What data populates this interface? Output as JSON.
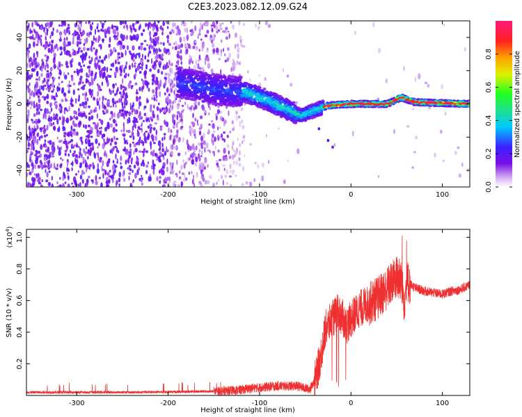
{
  "figure": {
    "title": "C2E3.2023.082.12.09.G24"
  },
  "chart_data": [
    {
      "type": "heatmap",
      "title": "C2E3.2023.082.12.09.G24",
      "xlabel": "Height of straight line (km)",
      "ylabel": "Frequency (Hz)",
      "xlim": [
        -355,
        130
      ],
      "ylim": [
        -50,
        50
      ],
      "x_ticks": [
        -300,
        -200,
        -100,
        0,
        100
      ],
      "y_ticks": [
        -40,
        -20,
        0,
        20,
        40
      ],
      "grid": false,
      "signal_trace": [
        {
          "x": -180,
          "y": 12
        },
        {
          "x": -140,
          "y": 8
        },
        {
          "x": -115,
          "y": 7
        },
        {
          "x": -95,
          "y": 3
        },
        {
          "x": -75,
          "y": -2
        },
        {
          "x": -55,
          "y": -7
        },
        {
          "x": -40,
          "y": -4
        },
        {
          "x": -25,
          "y": -1
        },
        {
          "x": 0,
          "y": 0
        },
        {
          "x": 40,
          "y": 0
        },
        {
          "x": 55,
          "y": 4
        },
        {
          "x": 70,
          "y": 1
        },
        {
          "x": 130,
          "y": 0
        }
      ],
      "colorbar": {
        "label": "Normalized spectral amplitude",
        "range": [
          0,
          1
        ],
        "ticks": [
          "0.0",
          "0.2",
          "0.4",
          "0.6",
          "0.8"
        ],
        "colors": [
          "#ffffff",
          "#d2a8f2",
          "#7a10e8",
          "#3a20ff",
          "#00c8ff",
          "#20e090",
          "#20ff20",
          "#e0f000",
          "#ffa000",
          "#ff2020",
          "#ff1a7a"
        ]
      }
    },
    {
      "type": "line",
      "xlabel": "Height of straight line (km)",
      "ylabel": "SNR (10 * v/v)",
      "y_multiplier": "(x10",
      "y_multiplier_exp": "4",
      "xlim": [
        -355,
        130
      ],
      "ylim": [
        0,
        1.05
      ],
      "x_ticks": [
        -300,
        -200,
        -100,
        0,
        100
      ],
      "y_ticks": [
        "0.2",
        "0.4",
        "0.6",
        "0.8",
        "1.0"
      ],
      "series": [
        {
          "color": "#ee3030",
          "x": [
            -355,
            -300,
            -250,
            -200,
            -160,
            -140,
            -120,
            -110,
            -100,
            -90,
            -80,
            -60,
            -45,
            -38,
            -33,
            -28,
            -22,
            -15,
            -10,
            -5,
            0,
            5,
            10,
            20,
            30,
            40,
            50,
            55,
            58,
            62,
            70,
            80,
            90,
            100,
            110,
            120,
            130
          ],
          "values": [
            0.02,
            0.02,
            0.02,
            0.022,
            0.025,
            0.028,
            0.035,
            0.045,
            0.05,
            0.055,
            0.06,
            0.06,
            0.04,
            0.12,
            0.25,
            0.42,
            0.47,
            0.52,
            0.5,
            0.44,
            0.48,
            0.52,
            0.55,
            0.58,
            0.62,
            0.68,
            0.75,
            0.72,
            0.6,
            0.72,
            0.68,
            0.66,
            0.65,
            0.64,
            0.66,
            0.67,
            0.7
          ]
        }
      ]
    }
  ]
}
